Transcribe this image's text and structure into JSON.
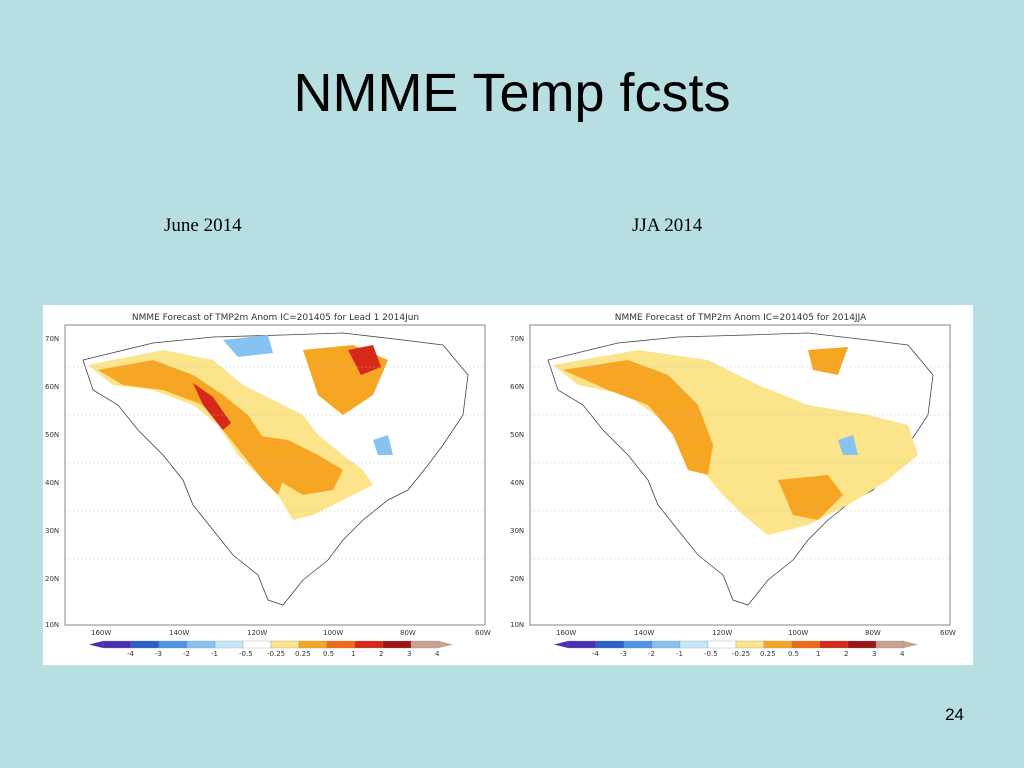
{
  "slide": {
    "title": "NMME Temp fcsts",
    "number": "24"
  },
  "panels": [
    {
      "caption": "June 2014",
      "map_title": "NMME Forecast of TMP2m Anom   IC=201405 for Lead 1 2014Jun"
    },
    {
      "caption": "JJA 2014",
      "map_title": "NMME Forecast of TMP2m Anom   IC=201405 for 2014JJA"
    }
  ],
  "map_axes": {
    "lat_labels": [
      "70N",
      "60N",
      "50N",
      "40N",
      "30N",
      "20N",
      "10N"
    ],
    "lon_labels": [
      "160W",
      "140W",
      "120W",
      "100W",
      "80W",
      "60W"
    ]
  },
  "colorbar": {
    "labels": [
      "-4",
      "-3",
      "-2",
      "-1",
      "-0.5",
      "-0.25",
      "0.25",
      "0.5",
      "1",
      "2",
      "3",
      "4"
    ],
    "colors": [
      "#4b2fb5",
      "#2a5fd0",
      "#4f93e6",
      "#86c2f2",
      "#c6e8f8",
      "#ffffff",
      "#fbe489",
      "#f6a623",
      "#ef6a14",
      "#d7281a",
      "#9c1414",
      "#c9a192"
    ]
  },
  "colors": {
    "background": "#b7dfe2",
    "anomaly_light": "#fbe489",
    "anomaly_mid": "#f6a623",
    "anomaly_high": "#ef6a14",
    "anomaly_max": "#d7281a",
    "anomaly_cold": "#86c2f2"
  }
}
